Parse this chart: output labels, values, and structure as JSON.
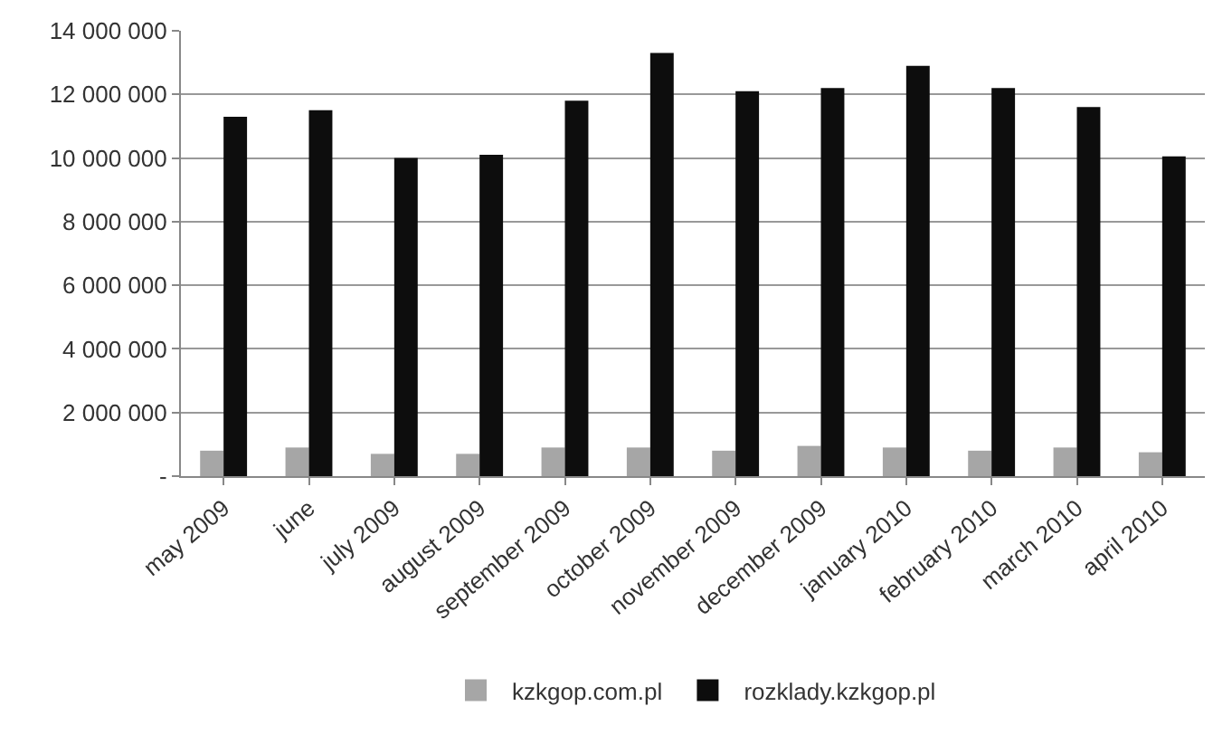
{
  "chart_data": {
    "type": "bar",
    "categories": [
      "may 2009",
      "june",
      "july 2009",
      "august 2009",
      "september 2009",
      "october 2009",
      "november 2009",
      "december 2009",
      "january 2010",
      "february 2010",
      "march 2010",
      "april 2010"
    ],
    "series": [
      {
        "name": "kzkgop.com.pl",
        "color": "#a6a6a6",
        "values": [
          800000,
          900000,
          700000,
          700000,
          900000,
          900000,
          800000,
          950000,
          900000,
          800000,
          900000,
          750000
        ]
      },
      {
        "name": "rozklady.kzkgop.pl",
        "color": "#0d0d0d",
        "values": [
          11300000,
          11500000,
          10000000,
          10100000,
          11800000,
          13300000,
          12100000,
          12200000,
          12900000,
          12200000,
          11600000,
          10050000
        ]
      }
    ],
    "ylim": [
      0,
      14000000
    ],
    "yticks": [
      {
        "value": 0,
        "label": "-"
      },
      {
        "value": 2000000,
        "label": "2 000 000"
      },
      {
        "value": 4000000,
        "label": "4 000 000"
      },
      {
        "value": 6000000,
        "label": "6 000 000"
      },
      {
        "value": 8000000,
        "label": "8 000 000"
      },
      {
        "value": 10000000,
        "label": "10 000 000"
      },
      {
        "value": 12000000,
        "label": "12 000 000"
      },
      {
        "value": 14000000,
        "label": "14 000 000"
      }
    ],
    "grid": "y",
    "legend": "bottom"
  }
}
